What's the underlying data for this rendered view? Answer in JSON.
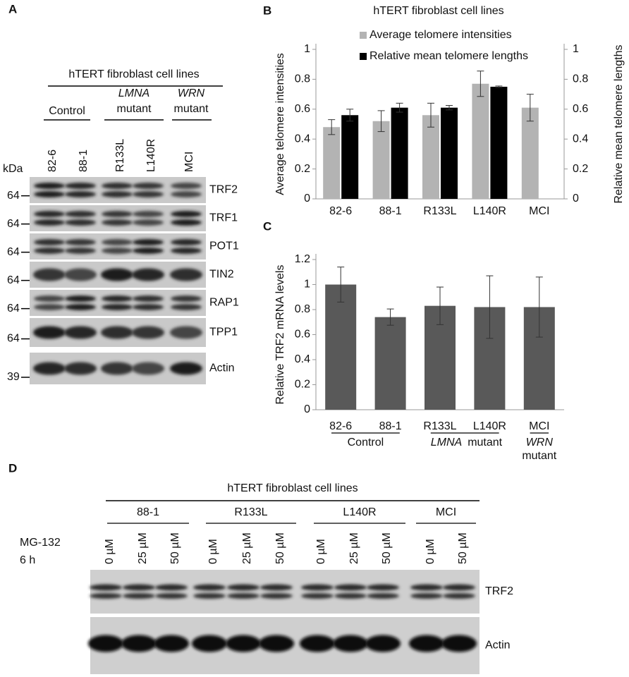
{
  "panel_a": {
    "label": "A",
    "header": "hTERT fibroblast cell lines",
    "groups": [
      {
        "label": "Control"
      },
      {
        "italic": "LMNA",
        "label": "mutant"
      },
      {
        "italic": "WRN",
        "label": "mutant"
      }
    ],
    "lanes": [
      "82-6",
      "88-1",
      "R133L",
      "L140R",
      "MCI"
    ],
    "unit": "kDa",
    "rows": [
      {
        "label": "TRF2",
        "marker": 64
      },
      {
        "label": "TRF1",
        "marker": 64
      },
      {
        "label": "POT1",
        "marker": 64
      },
      {
        "label": "TIN2",
        "marker": 64
      },
      {
        "label": "RAP1",
        "marker": 64
      },
      {
        "label": "TPP1",
        "marker": 64
      },
      {
        "label": "Actin",
        "marker": 39
      }
    ]
  },
  "chart_data": [
    {
      "type": "bar",
      "panel": "B",
      "title": "hTERT fibroblast cell lines",
      "categories": [
        "82-6",
        "88-1",
        "R133L",
        "L140R",
        "MCI"
      ],
      "series": [
        {
          "name": "Average telomere intensities",
          "color": "#b3b3b3",
          "values": [
            0.48,
            0.52,
            0.56,
            0.77,
            0.61
          ],
          "errors": [
            0.05,
            0.07,
            0.08,
            0.085,
            0.09
          ]
        },
        {
          "name": "Relative mean telomere lengths",
          "color": "#000000",
          "axis": "y2",
          "values": [
            0.56,
            0.61,
            0.61,
            0.75,
            null
          ],
          "errors": [
            0.04,
            0.03,
            0.015,
            0.005,
            null
          ]
        }
      ],
      "ylabel": "Average telomere intensities",
      "y2label": "Relative mean telomere lengths",
      "ylim": [
        0,
        1
      ],
      "yticks": [
        0,
        0.2,
        0.4,
        0.6,
        0.8,
        1
      ],
      "y2lim": [
        0,
        1
      ],
      "y2ticks": [
        0,
        0.2,
        0.4,
        0.6,
        0.8,
        1
      ]
    },
    {
      "type": "bar",
      "panel": "C",
      "categories": [
        "82-6",
        "88-1",
        "R133L",
        "L140R",
        "MCI"
      ],
      "series": [
        {
          "color": "#595959",
          "values": [
            1.0,
            0.74,
            0.83,
            0.82,
            0.82
          ],
          "errors": [
            0.14,
            0.065,
            0.15,
            0.25,
            0.24
          ]
        }
      ],
      "ylabel": "Relative TRF2 mRNA  levels",
      "ylim": [
        0,
        1.2
      ],
      "yticks": [
        0,
        0.2,
        0.4,
        0.6,
        0.8,
        1,
        1.2
      ],
      "groups": [
        {
          "label": "Control"
        },
        {
          "italic": "LMNA",
          "label": "mutant"
        },
        {
          "italic": "WRN",
          "label": "mutant"
        }
      ]
    }
  ],
  "panel_d": {
    "label": "D",
    "header": "hTERT fibroblast cell lines",
    "treatment": "MG-132",
    "time": "6 h",
    "groups": [
      {
        "label": "88-1",
        "lanes": [
          "0 µM",
          "25 µM",
          "50 µM"
        ]
      },
      {
        "label": "R133L",
        "lanes": [
          "0 µM",
          "25 µM",
          "50 µM"
        ]
      },
      {
        "label": "L140R",
        "lanes": [
          "0 µM",
          "25 µM",
          "50 µM"
        ]
      },
      {
        "label": "MCI",
        "lanes": [
          "0 µM",
          "50 µM"
        ]
      }
    ],
    "rows": [
      {
        "label": "TRF2"
      },
      {
        "label": "Actin"
      }
    ]
  }
}
